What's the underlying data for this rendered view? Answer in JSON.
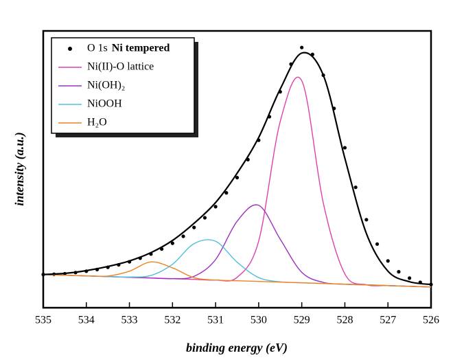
{
  "chart_data": {
    "type": "line",
    "xlabel": "binding energy (eV)",
    "ylabel": "intensity (a.u.)",
    "xlim": [
      535,
      526
    ],
    "xticks": [
      535,
      534,
      533,
      532,
      531,
      530,
      529,
      528,
      527,
      526
    ],
    "ylim": [
      0,
      100
    ],
    "legend": "upper left",
    "sample_label": "Ni tempered",
    "sample_label_color": "#3a3a9a",
    "x": [
      535,
      534.5,
      534,
      533.5,
      533,
      532.5,
      532,
      531.5,
      531,
      530.5,
      530,
      529.5,
      529,
      528.5,
      528,
      527.5,
      527,
      526.5,
      526
    ],
    "series": [
      {
        "name": "O 1s",
        "color": "#000000",
        "style": "points",
        "x": [
          535,
          534.75,
          534.5,
          534.25,
          534,
          533.75,
          533.5,
          533.25,
          533,
          532.75,
          532.5,
          532.25,
          532,
          531.75,
          531.5,
          531.25,
          531,
          530.75,
          530.5,
          530.25,
          530,
          529.75,
          529.5,
          529.25,
          529,
          528.75,
          528.5,
          528.25,
          528,
          527.75,
          527.5,
          527.25,
          527,
          526.75,
          526.5,
          526.25,
          526
        ],
        "values": [
          12,
          12.1,
          12.3,
          12.7,
          13.2,
          13.8,
          14.6,
          15.5,
          16.6,
          17.9,
          19.4,
          21.2,
          23.3,
          25.8,
          29,
          32.5,
          36.5,
          41.5,
          47,
          53.5,
          60.5,
          69,
          78,
          88,
          94,
          91.5,
          84,
          72,
          57.8,
          43.5,
          31.8,
          23,
          16.9,
          13,
          10.7,
          9.2,
          8.4
        ]
      },
      {
        "name": "Ni(II)-O lattice",
        "color": "#e040a8",
        "style": "line",
        "values": [
          12,
          11.75,
          11.5,
          11.25,
          11,
          10.75,
          10.5,
          10.25,
          10,
          11,
          24.1,
          67.3,
          82,
          37.8,
          12.2,
          8.3,
          8,
          7.75,
          7.5
        ]
      },
      {
        "name": "Ni(OH)₂",
        "color": "#9b30c0",
        "style": "line",
        "values": [
          12,
          11.75,
          11.5,
          11.25,
          11,
          10.75,
          10.5,
          11.35,
          17.4,
          31.25,
          37,
          24.75,
          12.8,
          9.15,
          8.5,
          8.25,
          8,
          7.75,
          7.5
        ]
      },
      {
        "name": "NiOOH",
        "color": "#4fc0d8",
        "style": "line",
        "values": [
          12,
          11.75,
          11.5,
          11.25,
          11.1,
          11.65,
          15.7,
          23.15,
          24,
          16.45,
          10.9,
          9.35,
          9,
          8.75,
          8.5,
          8.25,
          8,
          7.75,
          7.5
        ]
      },
      {
        "name": "H₂O",
        "color": "#f08020",
        "style": "line",
        "values": [
          12,
          11.75,
          11.5,
          11.45,
          13.2,
          16.55,
          14.4,
          10.85,
          10,
          9.75,
          9.5,
          9.25,
          9,
          8.75,
          8.5,
          8.25,
          8,
          7.75,
          7.5
        ]
      },
      {
        "color": "#000000",
        "style": "envelope",
        "values": [
          12,
          12.4,
          13.4,
          14.9,
          16.9,
          19.9,
          24.3,
          30.5,
          38,
          48.6,
          61.5,
          79,
          92,
          84,
          54,
          26.8,
          13.2,
          9.4,
          8.4
        ]
      }
    ]
  }
}
